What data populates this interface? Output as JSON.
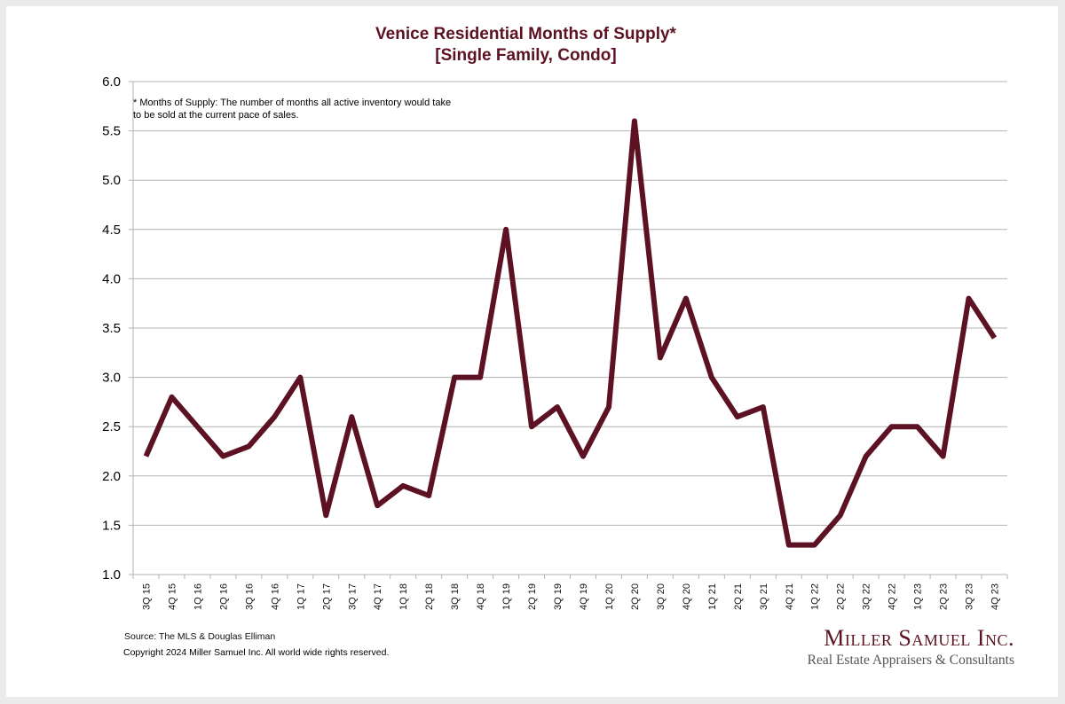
{
  "chart_data": {
    "type": "line",
    "title": "Venice Residential Months of Supply*",
    "subtitle": "[Single Family, Condo]",
    "xlabel": "",
    "ylabel": "",
    "ylim": [
      1.0,
      6.0
    ],
    "yticks": [
      "1.0",
      "1.5",
      "2.0",
      "2.5",
      "3.0",
      "3.5",
      "4.0",
      "4.5",
      "5.0",
      "5.5",
      "6.0"
    ],
    "grid": true,
    "legend": "none",
    "categories": [
      "3Q 15",
      "4Q 15",
      "1Q 16",
      "2Q 16",
      "3Q 16",
      "4Q 16",
      "1Q 17",
      "2Q 17",
      "3Q 17",
      "4Q 17",
      "1Q 18",
      "2Q 18",
      "3Q 18",
      "4Q 18",
      "1Q 19",
      "2Q 19",
      "3Q 19",
      "4Q 19",
      "1Q 20",
      "2Q 20",
      "3Q 20",
      "4Q 20",
      "1Q 21",
      "2Q 21",
      "3Q 21",
      "4Q 21",
      "1Q 22",
      "2Q 22",
      "3Q 22",
      "4Q 22",
      "1Q 23",
      "2Q 23",
      "3Q 23",
      "4Q 23"
    ],
    "series": [
      {
        "name": "Months of Supply",
        "color": "#5c1222",
        "values": [
          2.2,
          2.8,
          2.5,
          2.2,
          2.3,
          2.6,
          3.0,
          1.6,
          2.6,
          1.7,
          1.9,
          1.8,
          3.0,
          3.0,
          4.5,
          2.5,
          2.7,
          2.2,
          2.7,
          5.6,
          3.2,
          3.8,
          3.0,
          2.6,
          2.7,
          1.3,
          1.3,
          1.6,
          2.2,
          2.5,
          2.5,
          2.2,
          3.8,
          3.4
        ]
      }
    ],
    "annotations": [
      "* Months of Supply: The number of months all active inventory would take to be sold at the current pace of sales."
    ]
  },
  "colors": {
    "accent": "#5c1222",
    "grid": "#b3b3b3",
    "frame": "#ebebeb"
  },
  "footer": {
    "source": "Source: The MLS & Douglas Elliman",
    "copyright": "Copyright 2024 Miller Samuel Inc.  All world wide rights reserved."
  },
  "logo": {
    "name": "Miller Samuel Inc.",
    "tagline": "Real Estate Appraisers & Consultants"
  }
}
